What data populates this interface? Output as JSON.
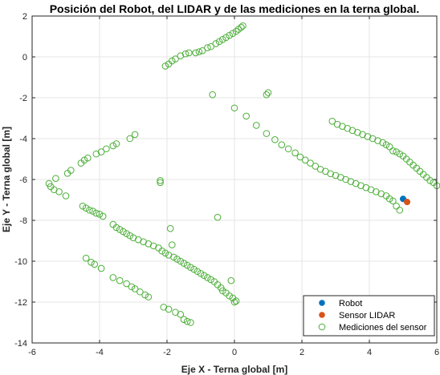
{
  "chart_data": {
    "type": "scatter",
    "title": "Posición del Robot, del LIDAR y de las mediciones en la terna global.",
    "xlabel": "Eje X - Terna global [m]",
    "ylabel": "Eje Y - Terna global [m]",
    "xlim": [
      -6,
      6
    ],
    "ylim": [
      -14,
      2
    ],
    "xticks": [
      -6,
      -4,
      -2,
      0,
      2,
      4,
      6
    ],
    "yticks": [
      -14,
      -12,
      -10,
      -8,
      -6,
      -4,
      -2,
      0,
      2
    ],
    "xtick_labels": [
      "-6",
      "-4",
      "-2",
      "0",
      "2",
      "4",
      "6"
    ],
    "ytick_labels": [
      "-14",
      "-12",
      "-10",
      "-8",
      "-6",
      "-4",
      "-2",
      "0",
      "2"
    ],
    "grid": true,
    "legend_position": "bottom-right",
    "series": [
      {
        "name": "Robot",
        "marker": "filled-circle",
        "color": "#0072BD",
        "points": [
          [
            5.0,
            -6.95
          ]
        ]
      },
      {
        "name": "Sensor LIDAR",
        "marker": "filled-circle",
        "color": "#D95319",
        "points": [
          [
            5.12,
            -7.1
          ]
        ]
      },
      {
        "name": "Mediciones del sensor",
        "marker": "open-circle",
        "color": "#4DAF3A",
        "points": [
          [
            -5.5,
            -6.2
          ],
          [
            -5.45,
            -6.35
          ],
          [
            -5.35,
            -6.5
          ],
          [
            -5.2,
            -6.6
          ],
          [
            -5.0,
            -6.8
          ],
          [
            -5.3,
            -5.95
          ],
          [
            -4.95,
            -5.7
          ],
          [
            -4.85,
            -5.55
          ],
          [
            -4.55,
            -5.2
          ],
          [
            -4.45,
            -5.05
          ],
          [
            -4.35,
            -4.95
          ],
          [
            -4.1,
            -4.75
          ],
          [
            -3.95,
            -4.65
          ],
          [
            -3.8,
            -4.5
          ],
          [
            -3.6,
            -4.35
          ],
          [
            -3.5,
            -4.25
          ],
          [
            -3.1,
            -4.0
          ],
          [
            -2.95,
            -3.8
          ],
          [
            -2.2,
            -6.05
          ],
          [
            -2.2,
            -6.15
          ],
          [
            -2.05,
            -0.45
          ],
          [
            -1.95,
            -0.35
          ],
          [
            -1.85,
            -0.2
          ],
          [
            -1.75,
            -0.1
          ],
          [
            -1.6,
            0.05
          ],
          [
            -1.45,
            0.15
          ],
          [
            -1.35,
            0.2
          ],
          [
            -1.15,
            0.2
          ],
          [
            -1.05,
            0.25
          ],
          [
            -0.95,
            0.3
          ],
          [
            -0.8,
            0.45
          ],
          [
            -0.7,
            0.5
          ],
          [
            -0.55,
            0.65
          ],
          [
            -0.45,
            0.75
          ],
          [
            -0.35,
            0.85
          ],
          [
            -0.25,
            0.95
          ],
          [
            -0.15,
            1.05
          ],
          [
            -0.05,
            1.15
          ],
          [
            0.05,
            1.25
          ],
          [
            0.12,
            1.35
          ],
          [
            0.2,
            1.45
          ],
          [
            0.25,
            1.52
          ],
          [
            -0.65,
            -1.85
          ],
          [
            0.0,
            -2.5
          ],
          [
            0.35,
            -2.9
          ],
          [
            0.65,
            -3.35
          ],
          [
            0.95,
            -3.75
          ],
          [
            1.2,
            -4.05
          ],
          [
            1.4,
            -4.3
          ],
          [
            1.6,
            -4.5
          ],
          [
            1.8,
            -4.7
          ],
          [
            1.95,
            -4.9
          ],
          [
            2.1,
            -5.05
          ],
          [
            2.25,
            -5.2
          ],
          [
            2.4,
            -5.35
          ],
          [
            2.55,
            -5.5
          ],
          [
            2.7,
            -5.6
          ],
          [
            2.85,
            -5.72
          ],
          [
            0.95,
            -1.85
          ],
          [
            1.0,
            -1.75
          ],
          [
            -4.5,
            -7.3
          ],
          [
            -4.4,
            -7.4
          ],
          [
            -4.3,
            -7.5
          ],
          [
            -4.2,
            -7.55
          ],
          [
            -4.1,
            -7.65
          ],
          [
            -4.0,
            -7.7
          ],
          [
            -3.9,
            -7.8
          ],
          [
            -3.6,
            -8.2
          ],
          [
            -3.5,
            -8.35
          ],
          [
            -3.4,
            -8.45
          ],
          [
            -3.3,
            -8.55
          ],
          [
            -3.2,
            -8.65
          ],
          [
            -3.1,
            -8.75
          ],
          [
            -3.0,
            -8.85
          ],
          [
            -2.85,
            -8.95
          ],
          [
            -2.7,
            -9.05
          ],
          [
            -2.55,
            -9.15
          ],
          [
            -2.4,
            -9.25
          ],
          [
            -2.25,
            -9.35
          ],
          [
            -2.15,
            -9.5
          ],
          [
            -2.05,
            -9.6
          ],
          [
            -1.95,
            -9.7
          ],
          [
            -1.8,
            -9.8
          ],
          [
            -1.7,
            -9.9
          ],
          [
            -1.6,
            -10.0
          ],
          [
            -1.5,
            -10.1
          ],
          [
            -1.4,
            -10.2
          ],
          [
            -1.3,
            -10.3
          ],
          [
            -1.2,
            -10.4
          ],
          [
            -1.1,
            -10.5
          ],
          [
            -1.0,
            -10.6
          ],
          [
            -0.9,
            -10.7
          ],
          [
            -0.8,
            -10.8
          ],
          [
            -0.7,
            -10.9
          ],
          [
            -0.6,
            -11.0
          ],
          [
            -0.5,
            -11.15
          ],
          [
            -0.4,
            -11.3
          ],
          [
            -0.35,
            -11.45
          ],
          [
            -0.25,
            -11.55
          ],
          [
            -0.15,
            -11.7
          ],
          [
            -0.05,
            -11.8
          ],
          [
            0.05,
            -11.95
          ],
          [
            -1.9,
            -8.4
          ],
          [
            -1.85,
            -9.2
          ],
          [
            -0.5,
            -7.85
          ],
          [
            -0.1,
            -10.95
          ],
          [
            -4.4,
            -9.85
          ],
          [
            -4.25,
            -10.05
          ],
          [
            -4.15,
            -10.15
          ],
          [
            -3.95,
            -10.35
          ],
          [
            -3.6,
            -10.8
          ],
          [
            -3.4,
            -10.95
          ],
          [
            -3.2,
            -11.1
          ],
          [
            -3.05,
            -11.25
          ],
          [
            -2.95,
            -11.35
          ],
          [
            -2.8,
            -11.5
          ],
          [
            -2.65,
            -11.65
          ],
          [
            -2.55,
            -11.75
          ],
          [
            -2.1,
            -12.25
          ],
          [
            -1.95,
            -12.35
          ],
          [
            -1.75,
            -12.5
          ],
          [
            -1.6,
            -12.6
          ],
          [
            -1.5,
            -12.85
          ],
          [
            -1.4,
            -12.95
          ],
          [
            -1.3,
            -13.0
          ],
          [
            2.9,
            -3.15
          ],
          [
            3.05,
            -3.3
          ],
          [
            3.2,
            -3.4
          ],
          [
            3.35,
            -3.5
          ],
          [
            3.5,
            -3.6
          ],
          [
            3.65,
            -3.7
          ],
          [
            3.8,
            -3.8
          ],
          [
            3.95,
            -3.9
          ],
          [
            4.1,
            -4.0
          ],
          [
            4.25,
            -4.1
          ],
          [
            4.4,
            -4.2
          ],
          [
            4.5,
            -4.3
          ],
          [
            4.6,
            -4.4
          ],
          [
            4.7,
            -4.6
          ],
          [
            4.8,
            -4.65
          ],
          [
            4.9,
            -4.75
          ],
          [
            5.0,
            -4.85
          ],
          [
            5.1,
            -5.0
          ],
          [
            5.2,
            -5.15
          ],
          [
            5.3,
            -5.3
          ],
          [
            5.4,
            -5.45
          ],
          [
            5.5,
            -5.6
          ],
          [
            5.6,
            -5.75
          ],
          [
            5.7,
            -5.9
          ],
          [
            5.8,
            -6.05
          ],
          [
            5.9,
            -6.15
          ],
          [
            6.0,
            -6.3
          ],
          [
            3.0,
            -5.8
          ],
          [
            3.15,
            -5.9
          ],
          [
            3.3,
            -6.0
          ],
          [
            3.45,
            -6.1
          ],
          [
            3.6,
            -6.2
          ],
          [
            3.75,
            -6.3
          ],
          [
            3.9,
            -6.4
          ],
          [
            4.05,
            -6.5
          ],
          [
            4.2,
            -6.6
          ],
          [
            4.35,
            -6.7
          ],
          [
            4.5,
            -6.8
          ],
          [
            4.6,
            -6.95
          ],
          [
            4.7,
            -7.05
          ],
          [
            4.8,
            -7.3
          ],
          [
            4.9,
            -7.5
          ],
          [
            0.0,
            -12.0
          ]
        ]
      }
    ]
  }
}
